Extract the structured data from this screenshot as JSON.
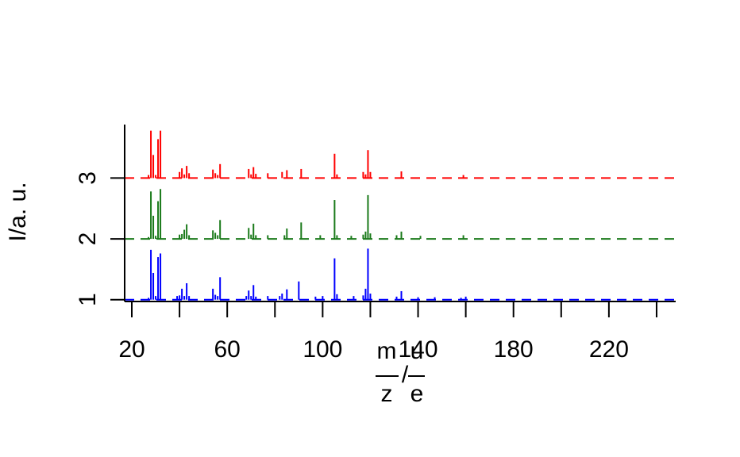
{
  "chart_data": {
    "type": "bar",
    "title": "",
    "xlabel": {
      "numerator_left": "m",
      "denominator_left": "z",
      "slash": "/",
      "numerator_right": "u",
      "denominator_right": "e"
    },
    "ylabel": "I/a. u.",
    "xlim": [
      17,
      248
    ],
    "ylim": [
      0.97,
      3.88
    ],
    "x_ticks": [
      20,
      60,
      100,
      140,
      180,
      220
    ],
    "x_minor_ticks": [
      40,
      80,
      120,
      160,
      200,
      240
    ],
    "y_ticks": [
      1,
      2,
      3
    ],
    "grid": false,
    "legend": false,
    "baseline_style": "dashed",
    "series": [
      {
        "offset": 1,
        "color": "#0000ff",
        "peaks": [
          [
            27,
            0.03
          ],
          [
            28,
            0.82
          ],
          [
            29,
            0.44
          ],
          [
            30,
            0.06
          ],
          [
            31,
            0.7
          ],
          [
            32,
            0.76
          ],
          [
            39,
            0.06
          ],
          [
            40,
            0.07
          ],
          [
            41,
            0.18
          ],
          [
            42,
            0.06
          ],
          [
            43,
            0.27
          ],
          [
            44,
            0.06
          ],
          [
            54,
            0.18
          ],
          [
            55,
            0.08
          ],
          [
            56,
            0.06
          ],
          [
            57,
            0.37
          ],
          [
            68,
            0.06
          ],
          [
            69,
            0.15
          ],
          [
            70,
            0.06
          ],
          [
            71,
            0.24
          ],
          [
            72,
            0.05
          ],
          [
            77,
            0.06
          ],
          [
            82,
            0.06
          ],
          [
            83,
            0.1
          ],
          [
            85,
            0.17
          ],
          [
            90,
            0.3
          ],
          [
            97,
            0.05
          ],
          [
            100,
            0.06
          ],
          [
            105,
            0.68
          ],
          [
            106,
            0.09
          ],
          [
            113,
            0.06
          ],
          [
            117,
            0.07
          ],
          [
            118,
            0.18
          ],
          [
            119,
            0.84
          ],
          [
            120,
            0.1
          ],
          [
            131,
            0.05
          ],
          [
            133,
            0.14
          ],
          [
            140,
            0.04
          ],
          [
            147,
            0.04
          ],
          [
            158,
            0.03
          ],
          [
            160,
            0.05
          ]
        ]
      },
      {
        "offset": 2,
        "color": "#1a7a1a",
        "peaks": [
          [
            27,
            0.03
          ],
          [
            28,
            0.78
          ],
          [
            29,
            0.38
          ],
          [
            30,
            0.05
          ],
          [
            31,
            0.62
          ],
          [
            32,
            0.82
          ],
          [
            40,
            0.07
          ],
          [
            41,
            0.08
          ],
          [
            42,
            0.15
          ],
          [
            43,
            0.24
          ],
          [
            44,
            0.06
          ],
          [
            54,
            0.14
          ],
          [
            55,
            0.1
          ],
          [
            56,
            0.06
          ],
          [
            57,
            0.31
          ],
          [
            69,
            0.18
          ],
          [
            70,
            0.07
          ],
          [
            71,
            0.25
          ],
          [
            72,
            0.06
          ],
          [
            77,
            0.06
          ],
          [
            84,
            0.06
          ],
          [
            85,
            0.17
          ],
          [
            91,
            0.27
          ],
          [
            99,
            0.06
          ],
          [
            105,
            0.64
          ],
          [
            106,
            0.06
          ],
          [
            112,
            0.05
          ],
          [
            117,
            0.07
          ],
          [
            118,
            0.12
          ],
          [
            119,
            0.72
          ],
          [
            120,
            0.09
          ],
          [
            131,
            0.06
          ],
          [
            133,
            0.12
          ],
          [
            141,
            0.05
          ],
          [
            159,
            0.06
          ]
        ]
      },
      {
        "offset": 3,
        "color": "#ff0000",
        "peaks": [
          [
            27,
            0.05
          ],
          [
            28,
            0.78
          ],
          [
            29,
            0.38
          ],
          [
            30,
            0.05
          ],
          [
            31,
            0.64
          ],
          [
            32,
            0.78
          ],
          [
            40,
            0.1
          ],
          [
            41,
            0.16
          ],
          [
            42,
            0.06
          ],
          [
            43,
            0.2
          ],
          [
            44,
            0.08
          ],
          [
            54,
            0.14
          ],
          [
            55,
            0.08
          ],
          [
            56,
            0.05
          ],
          [
            57,
            0.23
          ],
          [
            69,
            0.15
          ],
          [
            70,
            0.06
          ],
          [
            71,
            0.18
          ],
          [
            72,
            0.07
          ],
          [
            77,
            0.08
          ],
          [
            83,
            0.1
          ],
          [
            85,
            0.13
          ],
          [
            91,
            0.15
          ],
          [
            105,
            0.4
          ],
          [
            106,
            0.06
          ],
          [
            117,
            0.1
          ],
          [
            118,
            0.06
          ],
          [
            119,
            0.46
          ],
          [
            120,
            0.1
          ],
          [
            133,
            0.11
          ],
          [
            159,
            0.05
          ]
        ]
      }
    ]
  }
}
